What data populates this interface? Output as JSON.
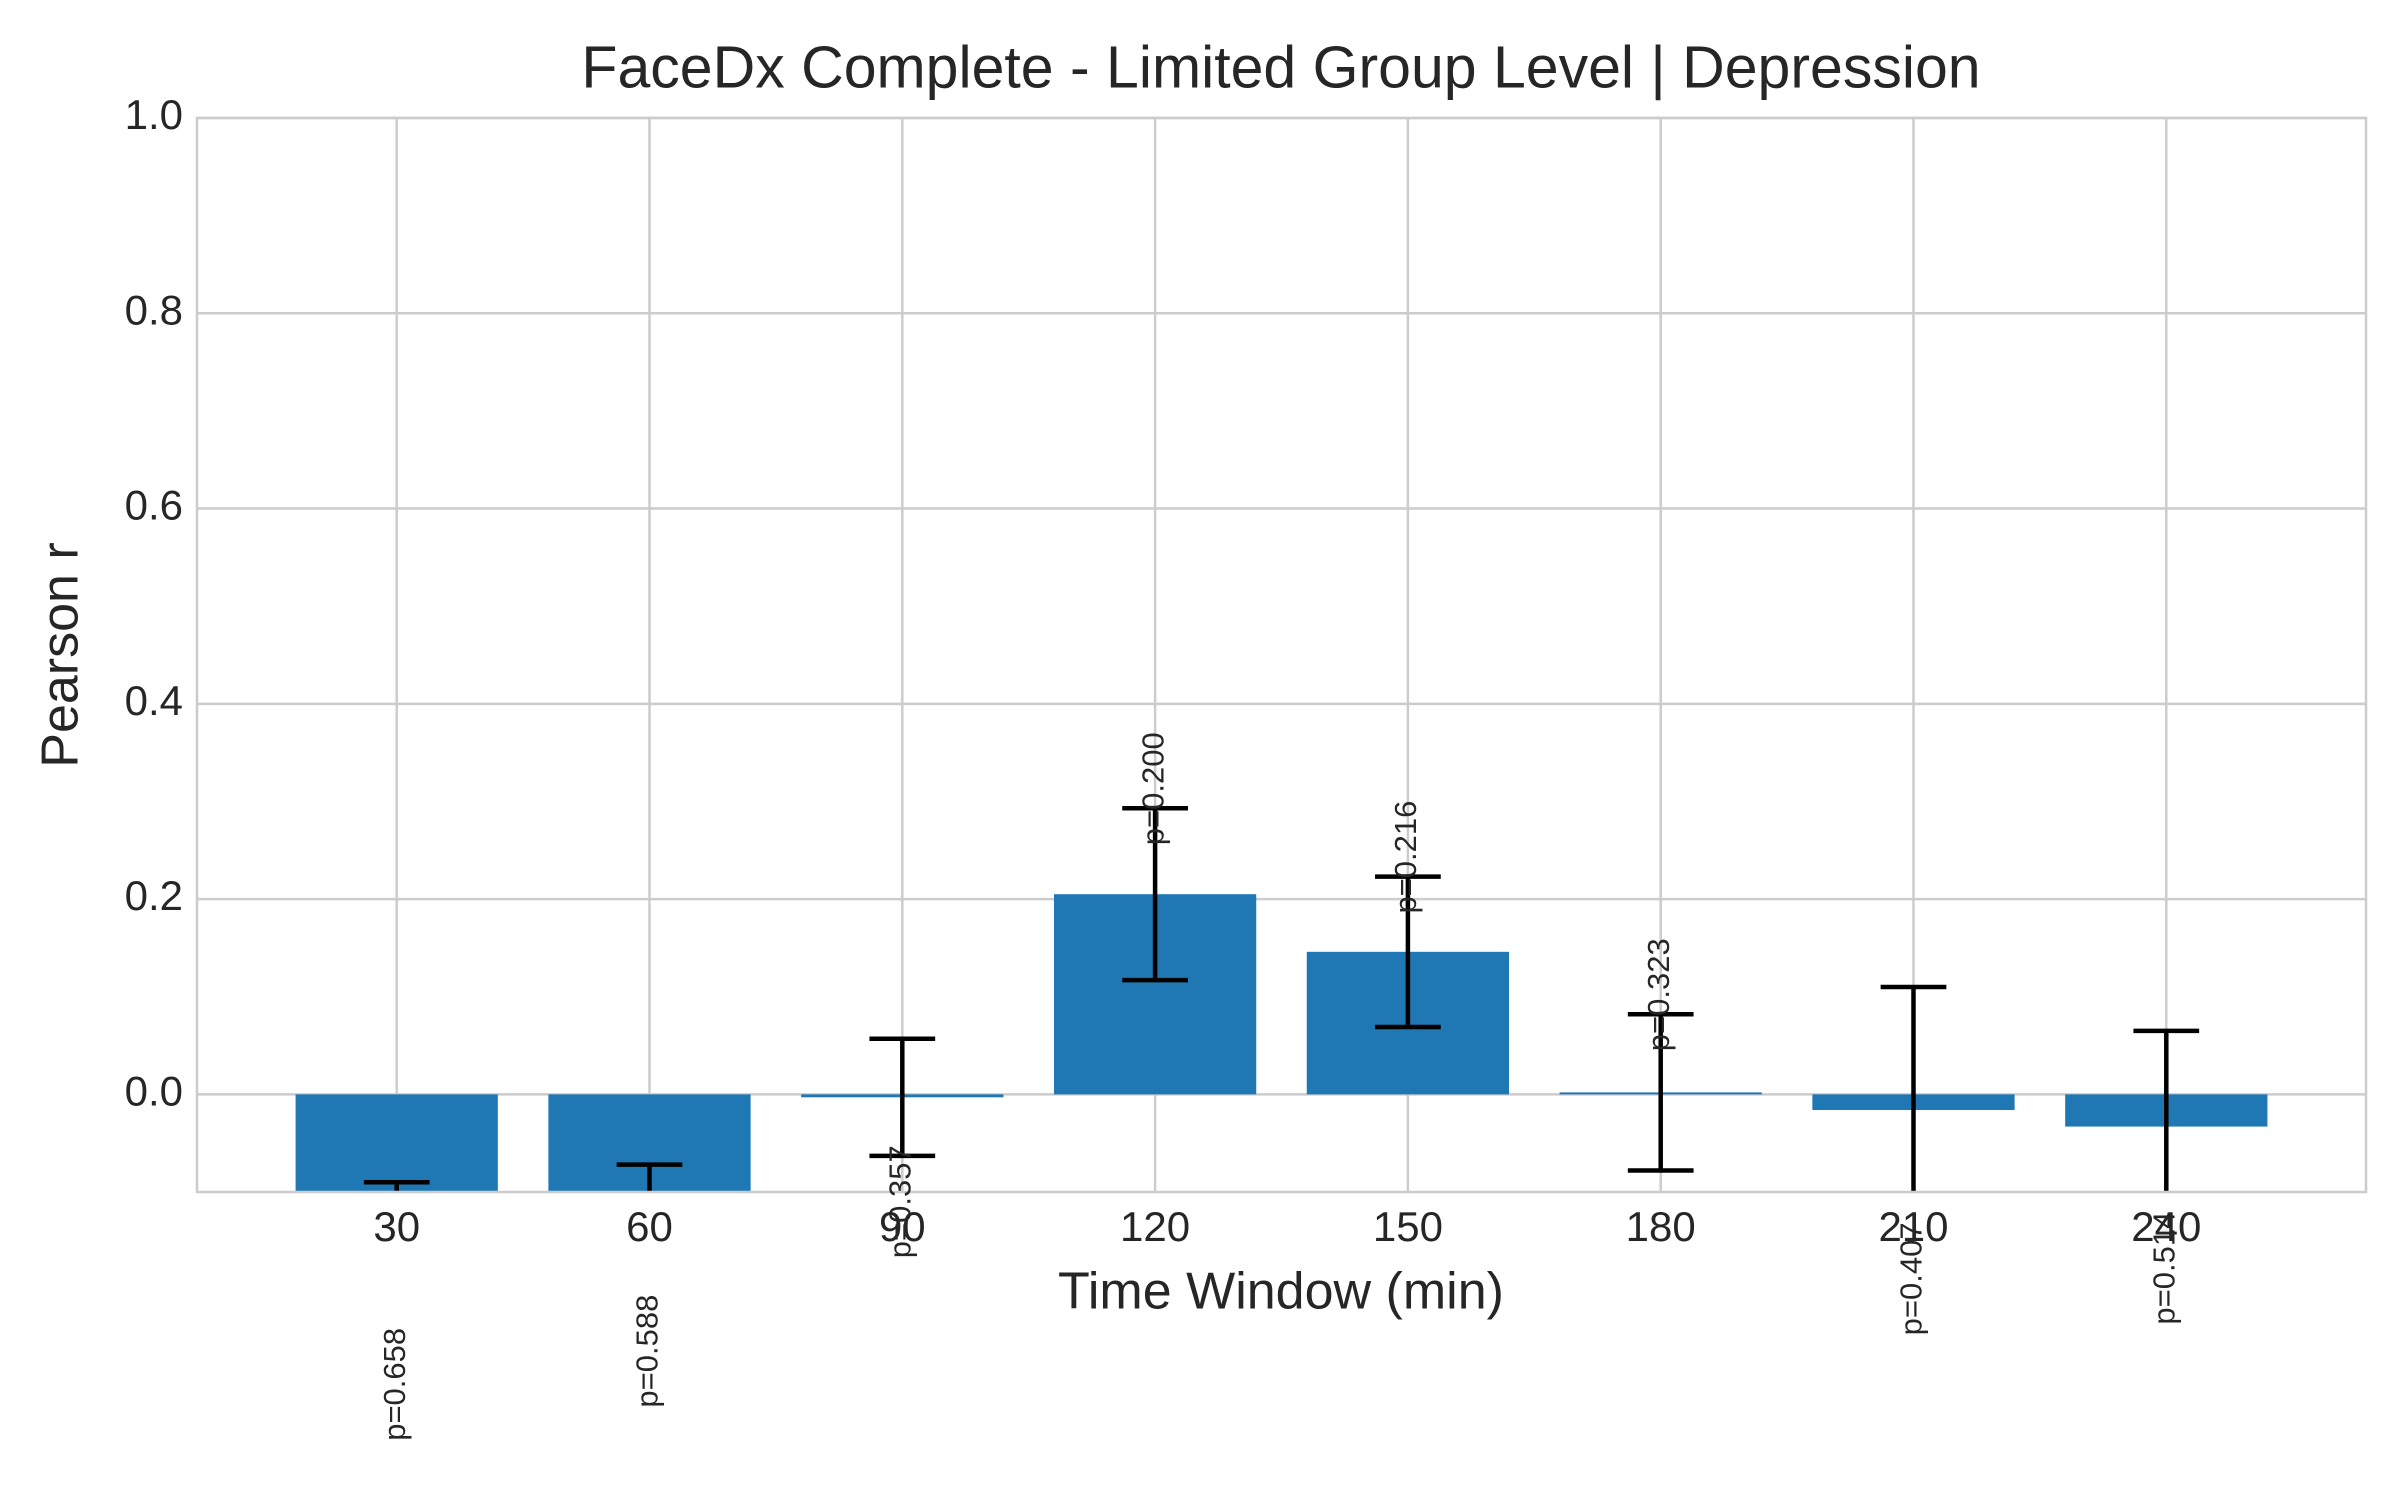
{
  "chart_data": {
    "type": "bar",
    "title": "FaceDx Complete - Limited Group Level | Depression",
    "x_label": "Time Window (min)",
    "y_label": "Pearson r",
    "categories": [
      30,
      60,
      90,
      120,
      150,
      180,
      210,
      240
    ],
    "values": [
      -0.17,
      -0.144,
      -0.003,
      0.205,
      0.146,
      0.002,
      -0.016,
      -0.033
    ],
    "errors": [
      0.08,
      0.072,
      0.06,
      0.088,
      0.077,
      0.08,
      0.126,
      0.098
    ],
    "annotations": [
      "p=0.658",
      "p=0.588",
      "p=0.357",
      "p=0.200",
      "p=0.216",
      "p=0.323",
      "p=0.407",
      "p=0.514"
    ],
    "color": "#1f77b4",
    "error_color": "#000000",
    "ylim": [
      -0.1,
      1.0
    ],
    "yticks": [
      {
        "value": 0,
        "label": "0.0"
      },
      {
        "value": 0.2,
        "label": "0.2"
      },
      {
        "value": 0.4,
        "label": "0.4"
      },
      {
        "value": 0.6,
        "label": "0.6"
      },
      {
        "value": 0.8,
        "label": "0.8"
      },
      {
        "value": 1,
        "label": "1.0"
      }
    ],
    "grid": true
  }
}
